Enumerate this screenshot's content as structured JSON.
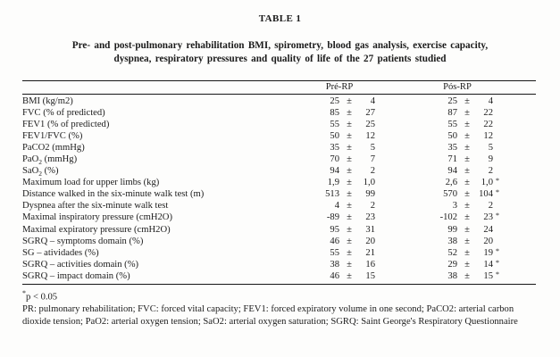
{
  "table_label": "TABLE 1",
  "title_line1": "Pre- and post-pulmonary rehabilitation BMI, spirometry, blood gas analysis, exercise capacity,",
  "title_line2": "dyspnea, respiratory pressures and quality of life of the 27 patients studied",
  "columns": {
    "pre": "Pré-RP",
    "pos": "Pós-RP"
  },
  "plus_minus": "±",
  "rows": [
    {
      "label": "BMI (kg/m2)",
      "pre_val": "25",
      "pre_sd": "4",
      "pos_val": "25",
      "pos_sd": "4"
    },
    {
      "label": "FVC (% of predicted)",
      "pre_val": "85",
      "pre_sd": "27",
      "pos_val": "87",
      "pos_sd": "22"
    },
    {
      "label": "FEV1 (% of predicted)",
      "pre_val": "55",
      "pre_sd": "25",
      "pos_val": "55",
      "pos_sd": "22"
    },
    {
      "label": "FEV1/FVC (%)",
      "pre_val": "50",
      "pre_sd": "12",
      "pos_val": "50",
      "pos_sd": "12"
    },
    {
      "label": "PaCO2 (mmHg)",
      "pre_val": "35",
      "pre_sd": "5",
      "pos_val": "35",
      "pos_sd": "5"
    },
    {
      "label": "PaO",
      "label_sub": "2",
      "label_post": " (mmHg)",
      "pre_val": "70",
      "pre_sd": "7",
      "pos_val": "71",
      "pos_sd": "9"
    },
    {
      "label": "SaO",
      "label_sub": "2",
      "label_post": " (%)",
      "pre_val": "94",
      "pre_sd": "2",
      "pos_val": "94",
      "pos_sd": "2"
    },
    {
      "label": "Maximum load for upper limbs (kg)",
      "pre_val": "1,9",
      "pre_sd": "1,0",
      "pos_val": "2,6",
      "pos_sd": "1,0",
      "pos_star": "*"
    },
    {
      "label": "Distance walked in the six-minute walk test (m)",
      "pre_val": "513",
      "pre_sd": "99",
      "pos_val": "570",
      "pos_sd": "104",
      "pos_star": "*"
    },
    {
      "label": "Dyspnea after the six-minute walk test",
      "pre_val": "4",
      "pre_sd": "2",
      "pos_val": "3",
      "pos_sd": "2"
    },
    {
      "label": "Maximal inspiratory pressure (cmH2O)",
      "pre_val": "-89",
      "pre_sd": "23",
      "pos_val": "-102",
      "pos_sd": "23",
      "pos_star": "*"
    },
    {
      "label": "Maximal expiratory pressure (cmH2O)",
      "pre_val": "95",
      "pre_sd": "31",
      "pos_val": "99",
      "pos_sd": "24"
    },
    {
      "label": "SGRQ – symptoms domain (%)",
      "pre_val": "46",
      "pre_sd": "20",
      "pos_val": "38",
      "pos_sd": "20"
    },
    {
      "label": "SG – atividades (%)",
      "pre_val": "55",
      "pre_sd": "21",
      "pos_val": "52",
      "pos_sd": "19",
      "pos_star": "*"
    },
    {
      "label": "SGRQ – activities domain (%)",
      "pre_val": "38",
      "pre_sd": "16",
      "pos_val": "29",
      "pos_sd": "14",
      "pos_star": "*"
    },
    {
      "label": "SGRQ – impact domain (%)",
      "pre_val": "46",
      "pre_sd": "15",
      "pos_val": "38",
      "pos_sd": "15",
      "pos_star": "*"
    }
  ],
  "footnotes": {
    "significance_star": "*",
    "significance_text": "p < 0.05",
    "abbreviations": "PR: pulmonary rehabilitation; FVC: forced vital capacity; FEV1: forced expiratory volume in one second; PaCO2: arterial carbon dioxide tension; PaO2: arterial oxygen tension; SaO2: arterial oxygen saturation; SGRQ: Saint George's Respiratory Questionnaire"
  },
  "colors": {
    "text": "#1b1b1b",
    "background": "#fdfdfc",
    "rule": "#161616"
  }
}
